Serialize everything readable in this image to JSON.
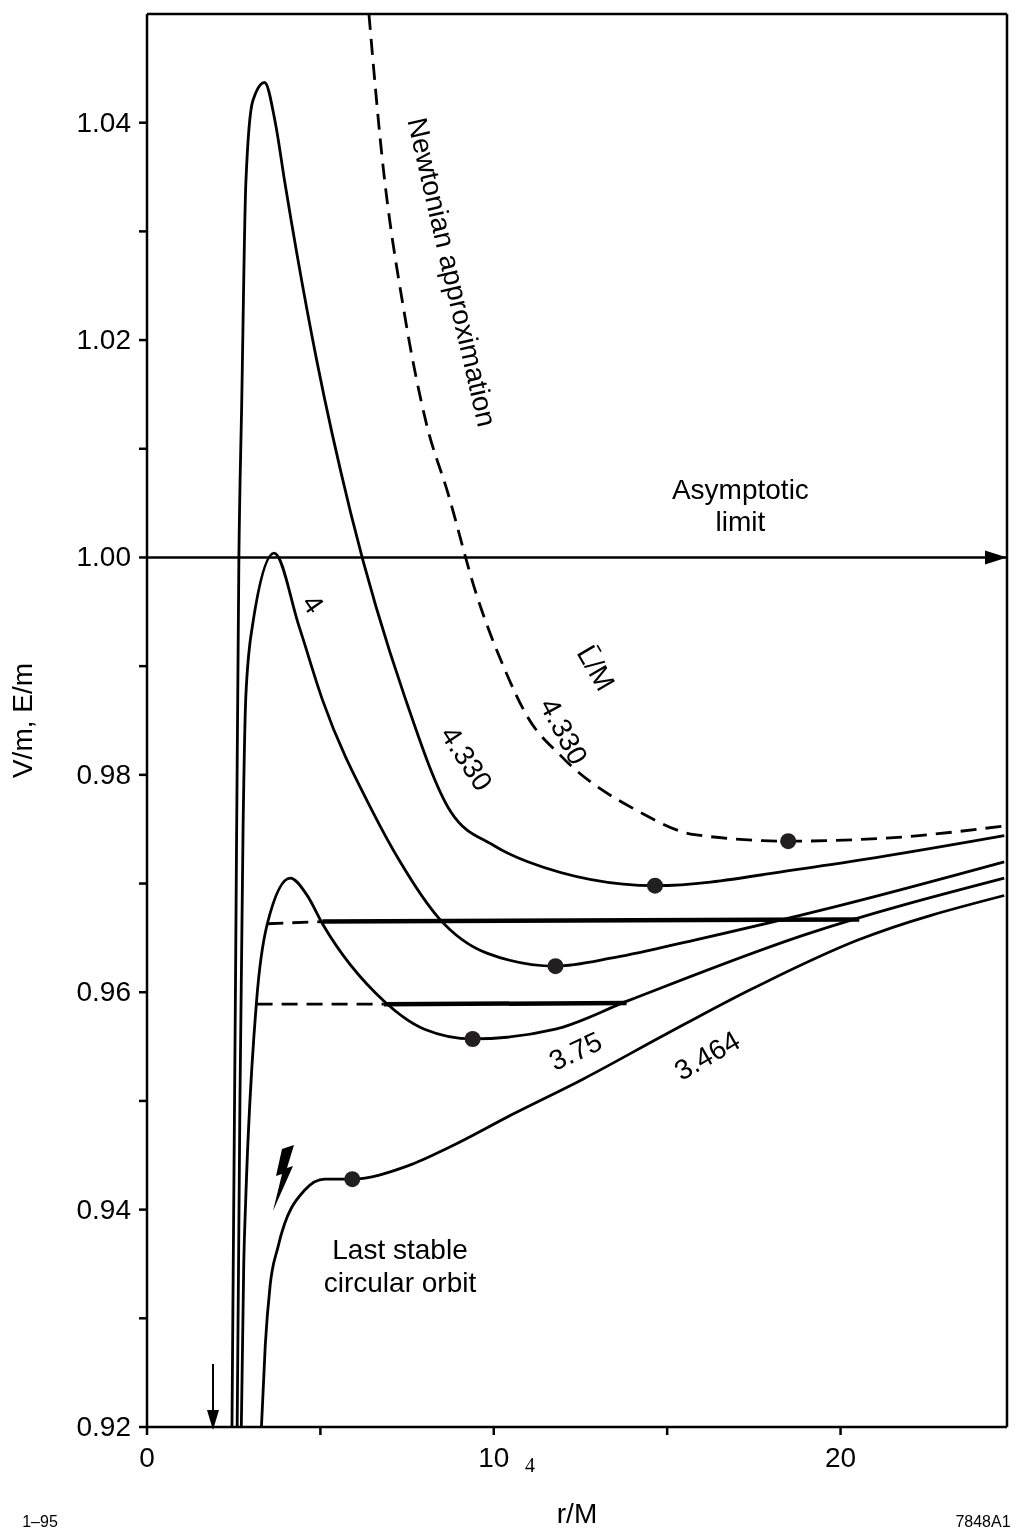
{
  "chart_data": {
    "type": "line",
    "xlabel": "r/M",
    "ylabel": "V/m, E/m",
    "xlim": [
      0,
      24.8
    ],
    "ylim": [
      0.92,
      1.05
    ],
    "xticks": [
      0,
      {
        "value": 5,
        "label": null
      },
      10,
      {
        "value": 15,
        "label": null
      },
      20
    ],
    "yticks": [
      0.92,
      {
        "value": 0.93,
        "label": null
      },
      0.94,
      {
        "value": 0.95,
        "label": null
      },
      0.96,
      {
        "value": 0.97,
        "label": null
      },
      0.98,
      {
        "value": 0.99,
        "label": null
      },
      "1.00",
      {
        "value": 1.01,
        "label": null
      },
      1.02,
      {
        "value": 1.03,
        "label": null
      },
      1.04
    ],
    "marker": "none",
    "series": [
      {
        "name": "4.330",
        "color": "#000000",
        "line_style": "dashed",
        "x": [
          6.4,
          6.77,
          7.43,
          8.05,
          8.68,
          9.47,
          10.33,
          10.98,
          11.95,
          14.2,
          15.79,
          18.49,
          21.42,
          24.72
        ],
        "values": [
          1.05,
          1.0371,
          1.0223,
          1.0124,
          1.0059,
          0.9969,
          0.9896,
          0.9853,
          0.9817,
          0.9766,
          0.9745,
          0.9739,
          0.9742,
          0.9753
        ]
      },
      {
        "name": "4.330",
        "color": "#000000",
        "line_style": "solid",
        "x": [
          2.45,
          2.55,
          2.65,
          2.73,
          2.85,
          3.05,
          3.39,
          3.7,
          3.98,
          4.89,
          5.89,
          7.43,
          8.76,
          10,
          10.98,
          14.65,
          18.98,
          24.72
        ],
        "values": [
          0.92,
          0.96,
          1.0,
          1.014,
          1.0344,
          1.042,
          1.0437,
          1.04,
          1.0344,
          1.0182,
          1.0039,
          0.9872,
          0.9766,
          0.9735,
          0.972,
          0.9698,
          0.9714,
          0.9744
        ]
      },
      {
        "name": "4",
        "color": "#000000",
        "line_style": "solid",
        "x": [
          2.6,
          2.68,
          2.77,
          2.85,
          3.04,
          3.67,
          4.38,
          5.06,
          6.51,
          7.3,
          8.42,
          9.8,
          11.78,
          13.5,
          15.79,
          20,
          24.72
        ],
        "values": [
          0.92,
          0.95,
          0.975,
          0.9872,
          0.9937,
          1.0004,
          0.9937,
          0.9869,
          0.9766,
          0.972,
          0.9668,
          0.9636,
          0.9624,
          0.9632,
          0.9648,
          0.968,
          0.972
        ]
      },
      {
        "name": "3.75",
        "color": "#000000",
        "line_style": "solid",
        "x": [
          2.72,
          2.79,
          2.85,
          3.16,
          3.47,
          4.13,
          4.6,
          5.06,
          6.83,
          8,
          9.39,
          11.78,
          13.86,
          18.98,
          24.72
        ],
        "values": [
          0.92,
          0.935,
          0.9412,
          0.9592,
          0.9663,
          0.9705,
          0.969,
          0.9663,
          0.9592,
          0.9566,
          0.9557,
          0.9566,
          0.9592,
          0.9653,
          0.9705
        ]
      },
      {
        "name": "3.464",
        "color": "#000000",
        "line_style": "solid",
        "x": [
          3.3,
          3.41,
          3.55,
          3.78,
          4.55,
          5.12,
          5.92,
          7.5,
          8.76,
          10.5,
          12.57,
          15,
          17.38,
          20.5,
          24.72
        ],
        "values": [
          0.92,
          0.9275,
          0.933,
          0.9366,
          0.9418,
          0.9428,
          0.9428,
          0.944,
          0.9458,
          0.9487,
          0.952,
          0.9562,
          0.9602,
          0.9648,
          0.9689
        ]
      },
      {
        "color": "#000000",
        "line_style": "dashed",
        "x": [
          3.47,
          5.06
        ],
        "values": [
          0.9663,
          0.9665
        ]
      },
      {
        "color": "#000000",
        "line_style": "solid",
        "x": [
          5.06,
          20.54
        ],
        "values": [
          0.9665,
          0.9667
        ]
      },
      {
        "color": "#000000",
        "line_style": "dashed",
        "x": [
          3.16,
          6.83
        ],
        "values": [
          0.9589,
          0.9589
        ]
      },
      {
        "color": "#000000",
        "line_style": "solid",
        "x": [
          6.83,
          13.83
        ],
        "values": [
          0.9589,
          0.959
        ]
      },
      {
        "type": "scatter",
        "color": "#231f20",
        "marker": "circle",
        "x": [
          5.92,
          9.39,
          11.78,
          14.65,
          18.49
        ],
        "values": [
          0.9428,
          0.9557,
          0.9624,
          0.9698,
          0.9739
        ]
      }
    ],
    "ref_lines": [
      {
        "axis": "y",
        "value": 1.0,
        "label": "Asymptotic limit",
        "color": "#000000"
      }
    ],
    "annotations": [
      "Newtonian approximation",
      "L̄/M",
      "Last stable circular orbit",
      "1–95",
      "7848A1",
      "4"
    ]
  }
}
